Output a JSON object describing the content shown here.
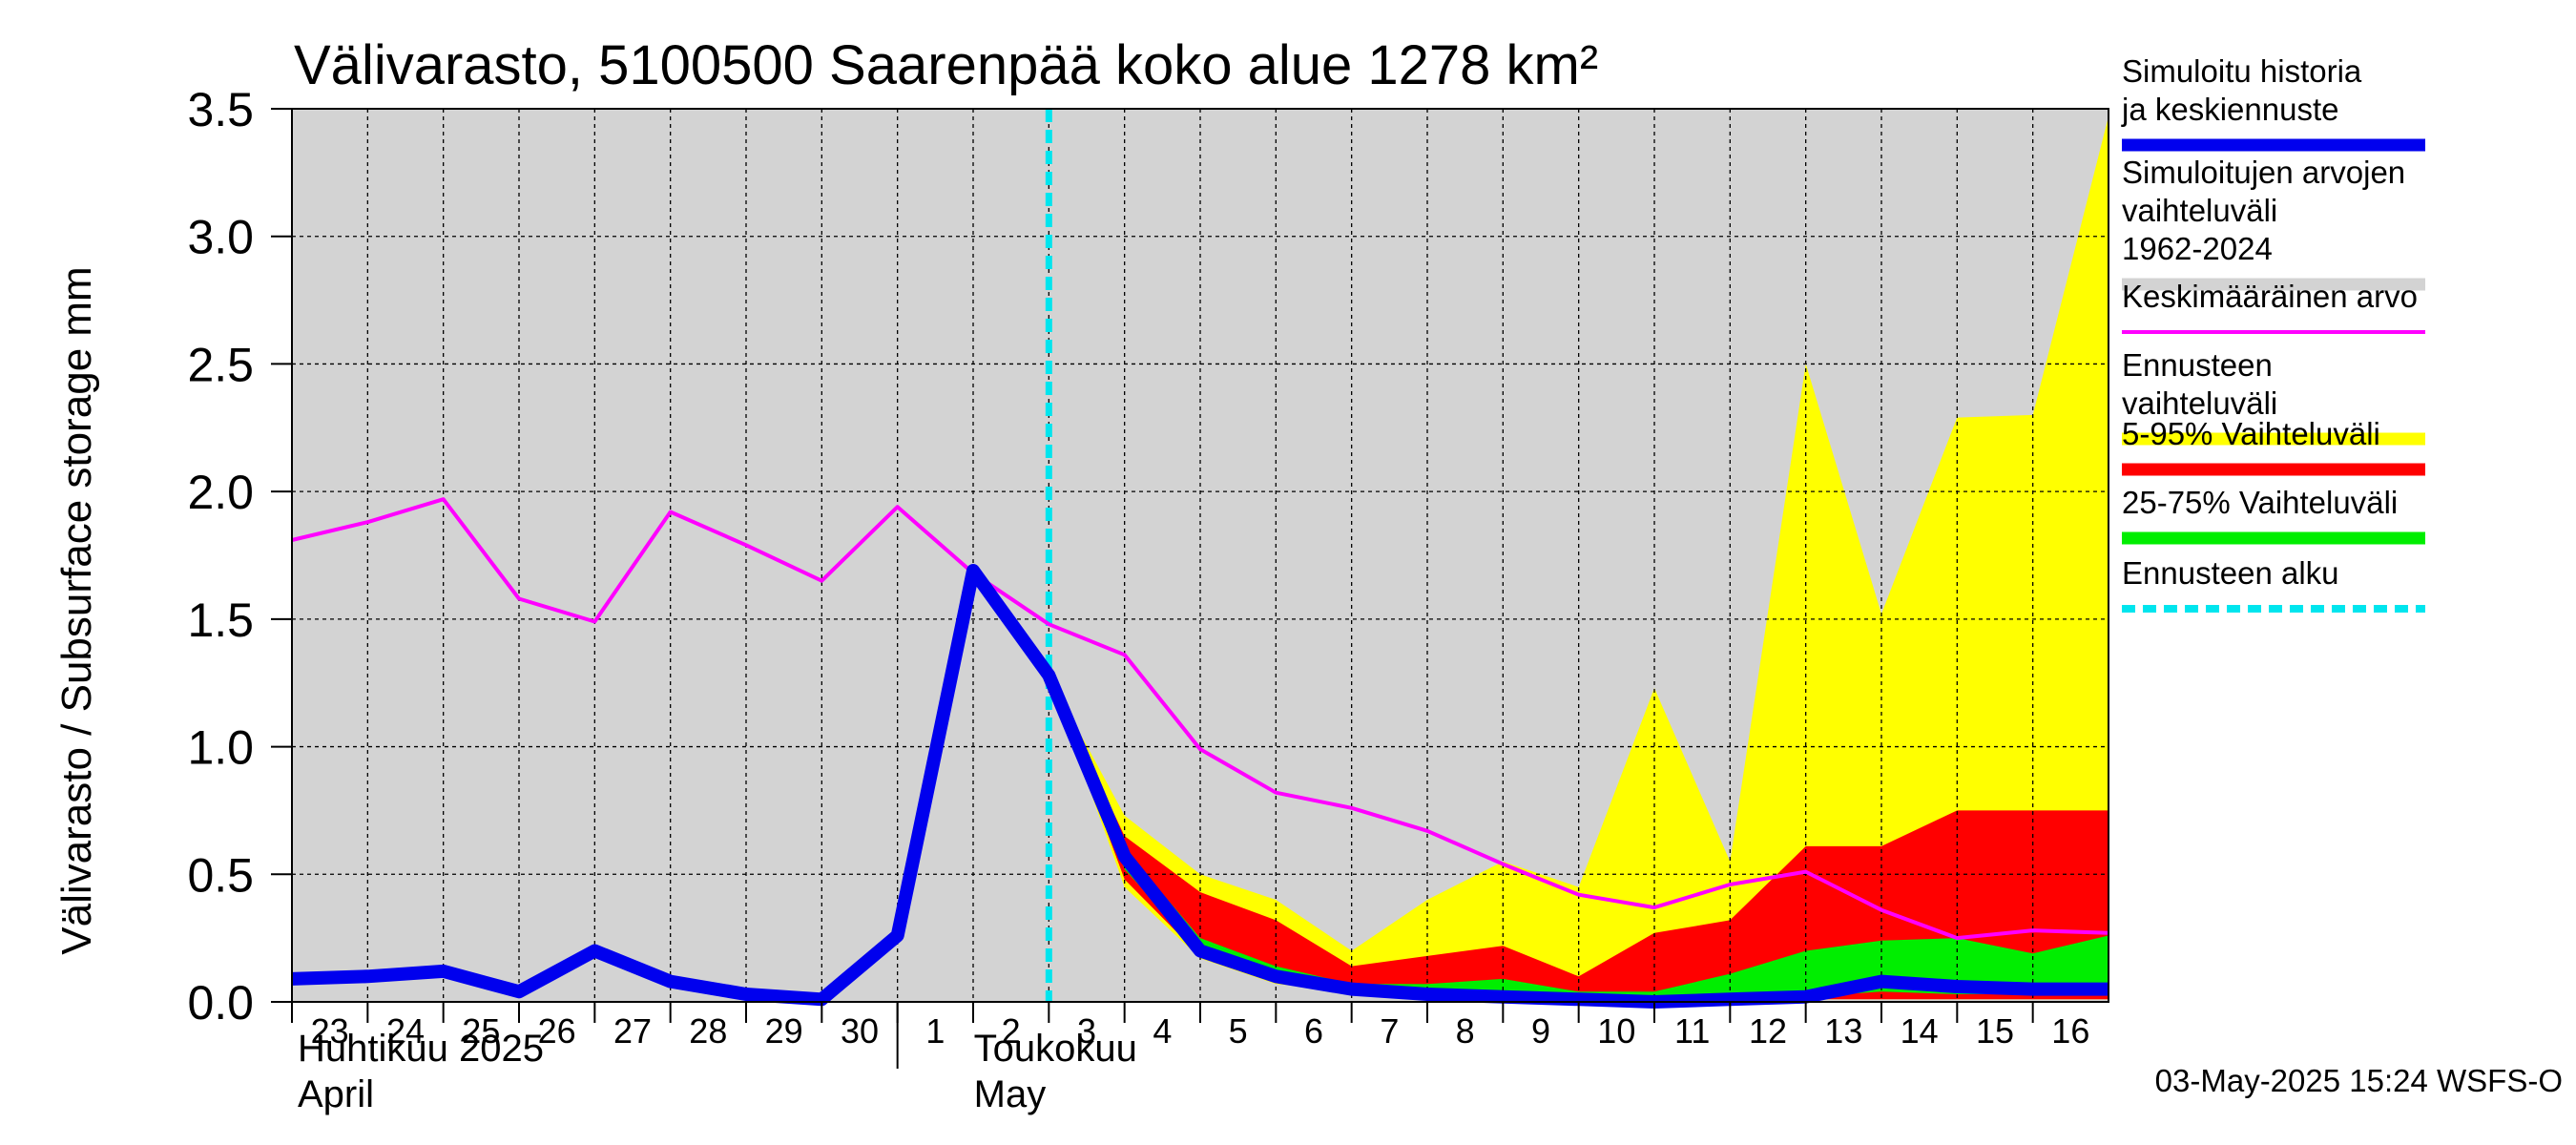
{
  "chart_data": {
    "type": "area",
    "title": "Välivarasto, 5100500 Saarenpää koko alue 1278 km²",
    "ylabel": "Välivarasto / Subsurface storage  mm",
    "ylim": [
      0,
      3.5
    ],
    "yticks": [
      "0.0",
      "0.5",
      "1.0",
      "1.5",
      "2.0",
      "2.5",
      "3.0",
      "3.5"
    ],
    "x_day_labels": [
      "23",
      "24",
      "25",
      "26",
      "27",
      "28",
      "29",
      "30",
      "1",
      "2",
      "3",
      "4",
      "5",
      "6",
      "7",
      "8",
      "9",
      "10",
      "11",
      "12",
      "13",
      "14",
      "15",
      "16"
    ],
    "month_labels": [
      {
        "fi": "Huhtikuu  2025",
        "en": "April"
      },
      {
        "fi": "Toukokuu",
        "en": "May"
      }
    ],
    "forecast_start": "2025-05-03",
    "grid": true,
    "legend_position": "right",
    "colors": {
      "history_range": "#d3d3d3",
      "simulated": "#0000ee",
      "mean": "#ff00ff",
      "forecast_range": "#ffff00",
      "p5_95": "#ff0000",
      "p25_75": "#00ee00",
      "forecast_start_line": "#00e5ee"
    },
    "series": [
      {
        "name": "Simuloitu historia ja keskiennuste",
        "x": [
          "2025-04-23",
          "2025-04-24",
          "2025-04-25",
          "2025-04-26",
          "2025-04-27",
          "2025-04-28",
          "2025-04-29",
          "2025-04-30",
          "2025-05-01",
          "2025-05-02",
          "2025-05-03",
          "2025-05-04",
          "2025-05-05",
          "2025-05-06",
          "2025-05-07",
          "2025-05-08",
          "2025-05-09",
          "2025-05-10",
          "2025-05-11",
          "2025-05-12",
          "2025-05-13",
          "2025-05-14",
          "2025-05-15",
          "2025-05-16",
          "2025-05-17"
        ],
        "values": [
          0.09,
          0.1,
          0.12,
          0.04,
          0.2,
          0.08,
          0.03,
          0.01,
          0.26,
          1.69,
          1.28,
          0.57,
          0.2,
          0.1,
          0.05,
          0.03,
          0.02,
          0.01,
          0.0,
          0.01,
          0.02,
          0.08,
          0.06,
          0.05,
          0.05
        ]
      },
      {
        "name": "Keskimääräinen arvo",
        "x": [
          "2025-04-23",
          "2025-04-24",
          "2025-04-25",
          "2025-04-26",
          "2025-04-27",
          "2025-04-28",
          "2025-04-29",
          "2025-04-30",
          "2025-05-01",
          "2025-05-02",
          "2025-05-03",
          "2025-05-04",
          "2025-05-05",
          "2025-05-06",
          "2025-05-07",
          "2025-05-08",
          "2025-05-09",
          "2025-05-10",
          "2025-05-11",
          "2025-05-12",
          "2025-05-13",
          "2025-05-14",
          "2025-05-15",
          "2025-05-16",
          "2025-05-17"
        ],
        "values": [
          1.81,
          1.88,
          1.97,
          1.58,
          1.49,
          1.92,
          1.79,
          1.65,
          1.94,
          1.68,
          1.48,
          1.36,
          0.99,
          0.82,
          0.76,
          0.67,
          0.54,
          0.42,
          0.37,
          0.46,
          0.51,
          0.36,
          0.25,
          0.28,
          0.27
        ]
      }
    ],
    "bands": [
      {
        "name": "Simuloitujen arvojen vaihteluväli 1962-2024",
        "x": [
          "2025-04-23",
          "2025-05-17"
        ],
        "low": [
          0.0,
          0.0
        ],
        "high": [
          3.5,
          3.5
        ]
      },
      {
        "name": "Ennusteen vaihteluväli",
        "x": [
          "2025-05-03",
          "2025-05-04",
          "2025-05-05",
          "2025-05-06",
          "2025-05-07",
          "2025-05-08",
          "2025-05-09",
          "2025-05-10",
          "2025-05-11",
          "2025-05-12",
          "2025-05-13",
          "2025-05-14",
          "2025-05-15",
          "2025-05-16",
          "2025-05-17"
        ],
        "low": [
          1.28,
          0.45,
          0.17,
          0.07,
          0.04,
          0.03,
          0.02,
          0.01,
          0.01,
          0.01,
          0.01,
          0.01,
          0.01,
          0.01,
          0.01
        ],
        "high": [
          1.28,
          0.73,
          0.5,
          0.4,
          0.2,
          0.4,
          0.55,
          0.45,
          1.23,
          0.55,
          2.5,
          1.52,
          2.29,
          2.3,
          3.47
        ]
      },
      {
        "name": "5-95% Vaihteluväli",
        "x": [
          "2025-05-03",
          "2025-05-04",
          "2025-05-05",
          "2025-05-06",
          "2025-05-07",
          "2025-05-08",
          "2025-05-09",
          "2025-05-10",
          "2025-05-11",
          "2025-05-12",
          "2025-05-13",
          "2025-05-14",
          "2025-05-15",
          "2025-05-16",
          "2025-05-17"
        ],
        "low": [
          1.28,
          0.48,
          0.18,
          0.08,
          0.05,
          0.03,
          0.02,
          0.01,
          0.01,
          0.01,
          0.01,
          0.01,
          0.01,
          0.01,
          0.01
        ],
        "high": [
          1.28,
          0.65,
          0.43,
          0.32,
          0.14,
          0.18,
          0.22,
          0.1,
          0.27,
          0.32,
          0.61,
          0.61,
          0.75,
          0.75,
          0.75
        ]
      },
      {
        "name": "25-75% Vaihteluväli",
        "x": [
          "2025-05-03",
          "2025-05-04",
          "2025-05-05",
          "2025-05-06",
          "2025-05-07",
          "2025-05-08",
          "2025-05-09",
          "2025-05-10",
          "2025-05-11",
          "2025-05-12",
          "2025-05-13",
          "2025-05-14",
          "2025-05-15",
          "2025-05-16",
          "2025-05-17"
        ],
        "low": [
          1.28,
          0.52,
          0.19,
          0.09,
          0.05,
          0.04,
          0.03,
          0.02,
          0.01,
          0.02,
          0.02,
          0.04,
          0.03,
          0.03,
          0.03
        ],
        "high": [
          1.28,
          0.6,
          0.25,
          0.14,
          0.07,
          0.07,
          0.09,
          0.04,
          0.04,
          0.11,
          0.2,
          0.24,
          0.25,
          0.19,
          0.26
        ]
      }
    ],
    "legend": [
      {
        "label": "Simuloitu historia ja keskiennuste",
        "key": "simulated",
        "style": "thick"
      },
      {
        "label": "Simuloitujen arvojen vaihteluväli 1962-2024",
        "key": "history_range",
        "style": "band"
      },
      {
        "label": "Keskimääräinen arvo",
        "key": "mean",
        "style": "thin"
      },
      {
        "label": "Ennusteen vaihteluväli",
        "key": "forecast_range",
        "style": "band"
      },
      {
        "label": "5-95% Vaihteluväli",
        "key": "p5_95",
        "style": "band"
      },
      {
        "label": "25-75% Vaihteluväli",
        "key": "p25_75",
        "style": "band"
      },
      {
        "label": "Ennusteen alku",
        "key": "forecast_start_line",
        "style": "dashed"
      }
    ],
    "timestamp": "03-May-2025 15:24 WSFS-O"
  }
}
